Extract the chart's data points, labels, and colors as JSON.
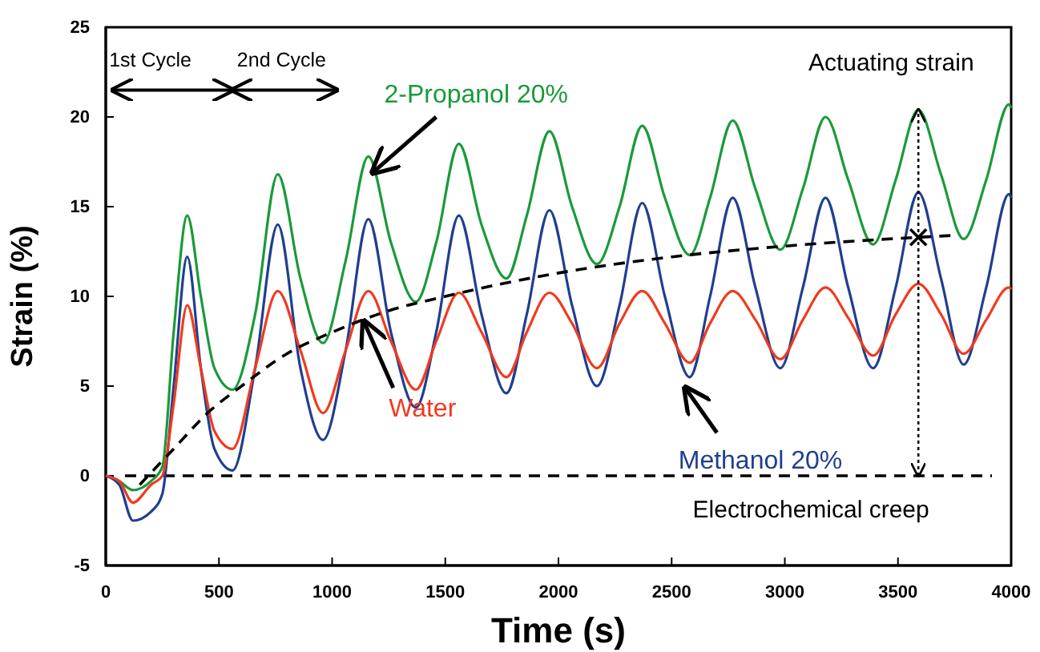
{
  "chart_data": {
    "type": "line",
    "xlabel": "Time (s)",
    "ylabel": "Strain (%)",
    "x": [
      0,
      60,
      120,
      200,
      250,
      300,
      360,
      420,
      480,
      560,
      660,
      760,
      860,
      960,
      1060,
      1160,
      1260,
      1370,
      1460,
      1560,
      1660,
      1770,
      1860,
      1960,
      2060,
      2170,
      2270,
      2370,
      2470,
      2580,
      2670,
      2770,
      2870,
      2980,
      3080,
      3180,
      3280,
      3390,
      3490,
      3590,
      3690,
      3790,
      3890,
      3990,
      4000
    ],
    "series": [
      {
        "name": "2-Propanol 20%",
        "color": "#1a9a3a",
        "values": [
          0,
          -0.3,
          -0.8,
          -0.3,
          0.5,
          8,
          14.5,
          10,
          6,
          4.8,
          9,
          16.8,
          11,
          7.4,
          12,
          17.8,
          13,
          9.7,
          13,
          18.5,
          14,
          11,
          14.5,
          19.2,
          15,
          11.8,
          15,
          19.5,
          15.5,
          12.3,
          15.5,
          19.8,
          16,
          12.6,
          16,
          20,
          16.5,
          12.9,
          16.5,
          20.4,
          16.8,
          13.2,
          16.5,
          20.7,
          20.5
        ]
      },
      {
        "name": "Methanol 20%",
        "color": "#1f3f8f",
        "values": [
          0,
          -0.5,
          -2.5,
          -2,
          -1,
          5,
          12.2,
          6,
          1.5,
          0.3,
          6,
          14,
          6,
          2,
          7,
          14.3,
          8,
          3.8,
          8,
          14.5,
          9,
          4.6,
          9,
          14.8,
          9.5,
          5,
          9.5,
          15.2,
          10,
          5.5,
          10,
          15.5,
          10.5,
          6,
          10.5,
          15.5,
          10.5,
          6,
          10.5,
          15.8,
          11,
          6.2,
          10.5,
          15.7,
          15.5
        ]
      },
      {
        "name": "Water",
        "color": "#f03a20",
        "values": [
          0,
          -0.3,
          -1.5,
          -0.5,
          0,
          4,
          9.5,
          6,
          2.5,
          1.5,
          6,
          10.3,
          7,
          3.5,
          7,
          10.3,
          7.5,
          4.8,
          7.5,
          10.2,
          8,
          5.5,
          8,
          10.2,
          8.5,
          6,
          8.5,
          10.3,
          8.5,
          6.3,
          8.5,
          10.3,
          8.7,
          6.5,
          8.7,
          10.5,
          8.8,
          6.7,
          9,
          10.7,
          9,
          6.8,
          8.7,
          10.5,
          10.4
        ]
      },
      {
        "color": "#000000",
        "line_style": "dashed",
        "x": [
          150,
          300,
          450,
          600,
          800,
          1000,
          1250,
          1500,
          2000,
          2500,
          3000,
          3600,
          3750
        ],
        "values": [
          -0.5,
          1.5,
          3.5,
          5,
          6.8,
          8,
          9.2,
          10,
          11.3,
          12.2,
          12.8,
          13.3,
          13.4
        ]
      }
    ],
    "ref_lines": [
      {
        "axis": "y",
        "value": 0,
        "color": "#000000",
        "line_style": "dashed"
      }
    ],
    "annotations": [
      "1st Cycle",
      "2nd Cycle",
      {
        "text": "Actuating strain",
        "x": 3590,
        "y": 20.4
      },
      {
        "text": "Electrochemical creep",
        "x": 3590,
        "y": 0
      }
    ],
    "xlim": [
      0,
      4000
    ],
    "xticks": [
      0,
      500,
      1000,
      1500,
      2000,
      2500,
      3000,
      3500,
      4000
    ],
    "ylim": [
      -5,
      25
    ],
    "yticks": [
      -5,
      0,
      5,
      10,
      15,
      20,
      25
    ],
    "line_style": "solid",
    "marker": "none",
    "grid": false,
    "legend": false
  }
}
